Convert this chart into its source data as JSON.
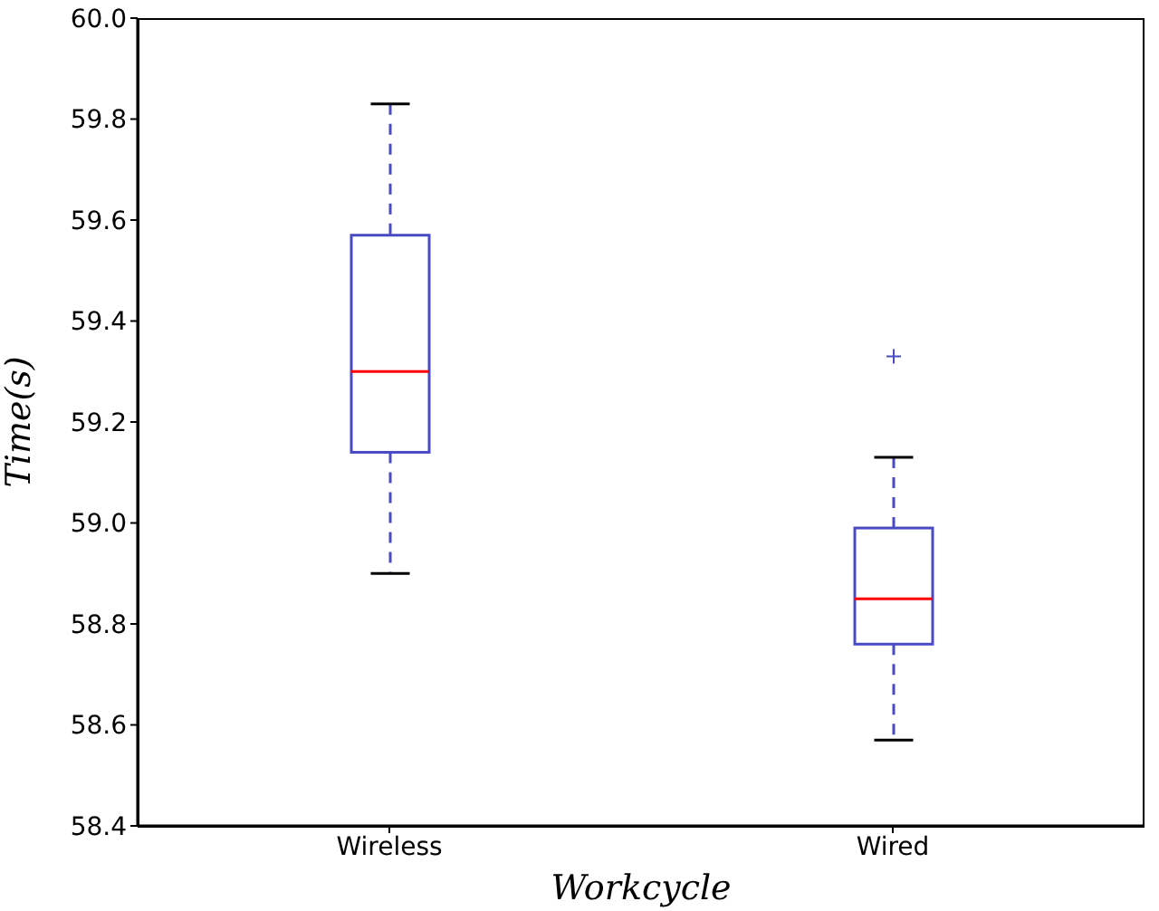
{
  "chart_data": {
    "type": "box",
    "xlabel": "Workcycle",
    "ylabel": "Time(s)",
    "categories": [
      "Wireless",
      "Wired"
    ],
    "color": "#4a4ac4",
    "boxes": [
      {
        "low": 58.9,
        "q1": 59.14,
        "median": 59.3,
        "q3": 59.57,
        "high": 59.83
      },
      {
        "low": 58.57,
        "q1": 58.76,
        "median": 58.85,
        "q3": 58.99,
        "high": 59.13,
        "outliers": [
          59.33
        ]
      }
    ],
    "ylim": [
      58.4,
      60.0
    ],
    "yticks": [
      {
        "value": 58.4,
        "label": "58.4"
      },
      {
        "value": 58.6,
        "label": "58.6"
      },
      {
        "value": 58.8,
        "label": "58.8"
      },
      {
        "value": 59.0,
        "label": "59.0"
      },
      {
        "value": 59.2,
        "label": "59.2"
      },
      {
        "value": 59.4,
        "label": "59.4"
      },
      {
        "value": 59.6,
        "label": "59.6"
      },
      {
        "value": 59.8,
        "label": "59.8"
      },
      {
        "value": 60.0,
        "label": "60.0"
      }
    ],
    "grid": false,
    "legend": false
  }
}
